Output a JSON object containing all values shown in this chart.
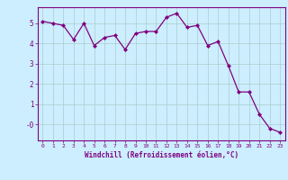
{
  "x": [
    0,
    1,
    2,
    3,
    4,
    5,
    6,
    7,
    8,
    9,
    10,
    11,
    12,
    13,
    14,
    15,
    16,
    17,
    18,
    19,
    20,
    21,
    22,
    23
  ],
  "y": [
    5.1,
    5.0,
    4.9,
    4.2,
    5.0,
    3.9,
    4.3,
    4.4,
    3.7,
    4.5,
    4.6,
    4.6,
    5.3,
    5.5,
    4.8,
    4.9,
    3.9,
    4.1,
    2.9,
    1.6,
    1.6,
    0.5,
    -0.2,
    -0.4
  ],
  "line_color": "#800080",
  "marker_color": "#800080",
  "bg_color": "#cceeff",
  "grid_color": "#aacccc",
  "axis_color": "#800080",
  "tick_color": "#800080",
  "xlabel": "Windchill (Refroidissement éolien,°C)",
  "ylim": [
    -0.8,
    5.8
  ],
  "xlim": [
    -0.5,
    23.5
  ],
  "yticks": [
    0,
    1,
    2,
    3,
    4,
    5
  ],
  "ytick_labels": [
    "-0",
    "1",
    "2",
    "3",
    "4",
    "5"
  ],
  "xticks": [
    0,
    1,
    2,
    3,
    4,
    5,
    6,
    7,
    8,
    9,
    10,
    11,
    12,
    13,
    14,
    15,
    16,
    17,
    18,
    19,
    20,
    21,
    22,
    23
  ]
}
